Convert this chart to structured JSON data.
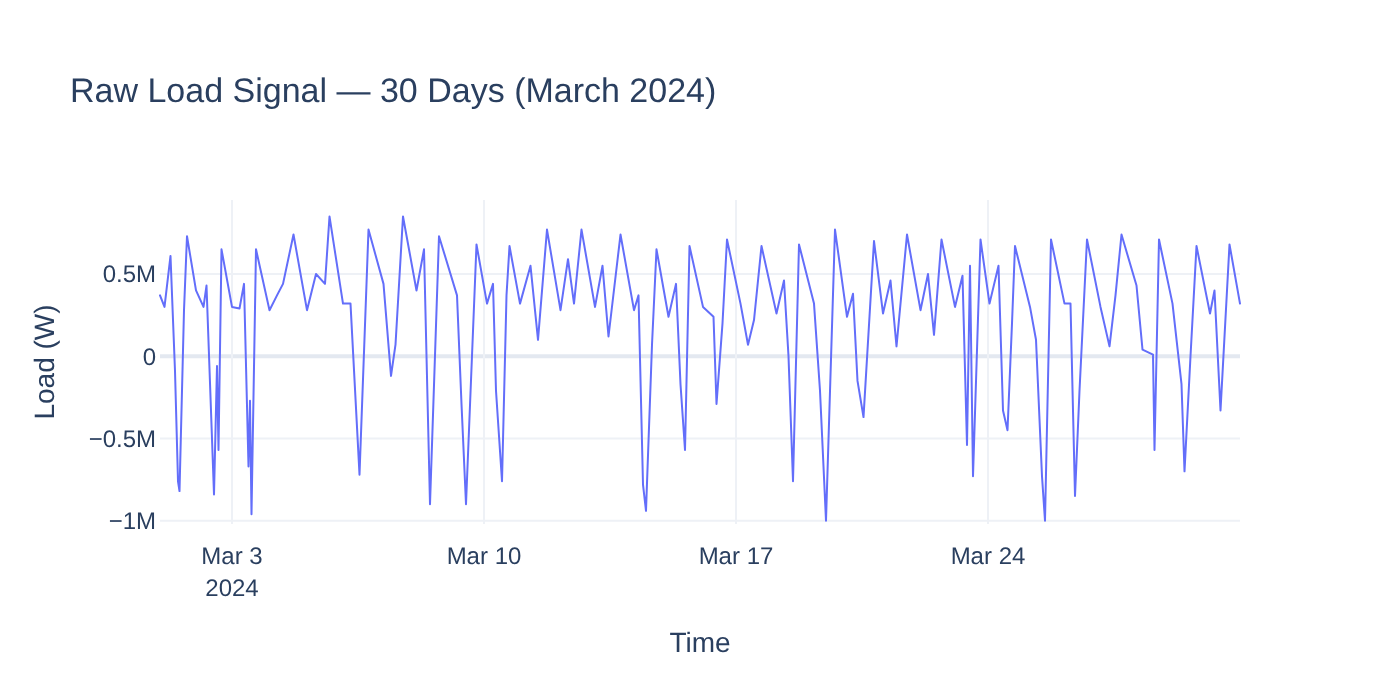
{
  "chart_data": {
    "type": "line",
    "title": "Raw Load Signal — 30 Days (March 2024)",
    "xlabel": "Time",
    "ylabel": "Load (W)",
    "x": [
      "2024-03-01T00:00",
      "2024-03-01T03:00",
      "2024-03-01T07:00",
      "2024-03-01T10:00",
      "2024-03-01T12:00",
      "2024-03-01T13:00",
      "2024-03-01T16:00",
      "2024-03-01T18:00",
      "2024-03-02T00:00",
      "2024-03-02T05:00",
      "2024-03-02T07:00",
      "2024-03-02T12:00",
      "2024-03-02T14:00",
      "2024-03-02T15:00",
      "2024-03-02T17:00",
      "2024-03-03T00:00",
      "2024-03-03T05:00",
      "2024-03-03T08:00",
      "2024-03-03T11:00",
      "2024-03-03T12:00",
      "2024-03-03T13:00",
      "2024-03-03T16:00",
      "2024-03-04T01:00",
      "2024-03-04T06:00",
      "2024-03-04T10:00",
      "2024-03-04T17:00",
      "2024-03-05T02:00",
      "2024-03-05T08:00",
      "2024-03-05T14:00",
      "2024-03-05T17:00",
      "2024-03-06T02:00",
      "2024-03-06T07:00",
      "2024-03-06T13:00",
      "2024-03-06T19:00",
      "2024-03-07T05:00",
      "2024-03-07T10:00",
      "2024-03-07T13:00",
      "2024-03-07T18:00",
      "2024-03-08T03:00",
      "2024-03-08T08:00",
      "2024-03-08T12:00",
      "2024-03-08T18:00",
      "2024-03-09T06:00",
      "2024-03-09T09:00",
      "2024-03-09T12:00",
      "2024-03-09T19:00",
      "2024-03-10T02:00",
      "2024-03-10T06:00",
      "2024-03-10T08:00",
      "2024-03-10T12:00",
      "2024-03-10T15:00",
      "2024-03-10T17:00",
      "2024-03-11T00:00",
      "2024-03-11T07:00",
      "2024-03-11T12:00",
      "2024-03-11T18:00",
      "2024-03-12T03:00",
      "2024-03-12T08:00",
      "2024-03-12T12:00",
      "2024-03-12T17:00",
      "2024-03-13T02:00",
      "2024-03-13T07:00",
      "2024-03-13T11:00",
      "2024-03-13T19:00",
      "2024-03-14T04:00",
      "2024-03-14T07:00",
      "2024-03-14T10:00",
      "2024-03-14T12:00",
      "2024-03-14T16:00",
      "2024-03-14T19:00",
      "2024-03-15T03:00",
      "2024-03-15T08:00",
      "2024-03-15T11:00",
      "2024-03-15T14:00",
      "2024-03-15T17:00",
      "2024-03-16T02:00",
      "2024-03-16T09:00",
      "2024-03-16T11:00",
      "2024-03-16T15:00",
      "2024-03-16T18:00",
      "2024-03-17T03:00",
      "2024-03-17T08:00",
      "2024-03-17T12:00",
      "2024-03-17T17:00",
      "2024-03-18T03:00",
      "2024-03-18T08:00",
      "2024-03-18T11:00",
      "2024-03-18T14:00",
      "2024-03-18T18:00",
      "2024-03-19T04:00",
      "2024-03-19T08:00",
      "2024-03-19T12:00",
      "2024-03-19T18:00",
      "2024-03-20T02:00",
      "2024-03-20T06:00",
      "2024-03-20T09:00",
      "2024-03-20T13:00",
      "2024-03-20T20:00",
      "2024-03-21T02:00",
      "2024-03-21T07:00",
      "2024-03-21T11:00",
      "2024-03-21T18:00",
      "2024-03-22T03:00",
      "2024-03-22T08:00",
      "2024-03-22T12:00",
      "2024-03-22T17:00",
      "2024-03-23T02:00",
      "2024-03-23T07:00",
      "2024-03-23T10:00",
      "2024-03-23T12:00",
      "2024-03-23T14:00",
      "2024-03-23T19:00",
      "2024-03-24T01:00",
      "2024-03-24T07:00",
      "2024-03-24T10:00",
      "2024-03-24T13:00",
      "2024-03-24T16:00",
      "2024-03-24T18:00",
      "2024-03-25T04:00",
      "2024-03-25T08:00",
      "2024-03-25T12:00",
      "2024-03-25T14:00",
      "2024-03-25T18:00",
      "2024-03-26T03:00",
      "2024-03-26T07:00",
      "2024-03-26T10:00",
      "2024-03-26T13:00",
      "2024-03-26T18:00",
      "2024-03-27T03:00",
      "2024-03-27T09:00",
      "2024-03-27T13:00",
      "2024-03-27T17:00",
      "2024-03-28T03:00",
      "2024-03-28T07:00",
      "2024-03-28T14:00",
      "2024-03-28T15:00",
      "2024-03-28T18:00",
      "2024-03-29T03:00",
      "2024-03-29T09:00",
      "2024-03-29T11:00",
      "2024-03-29T15:00",
      "2024-03-29T19:00",
      "2024-03-30T04:00",
      "2024-03-30T07:00",
      "2024-03-30T11:00",
      "2024-03-30T17:00",
      "2024-03-31T00:00"
    ],
    "series": [
      {
        "color": "#636efa",
        "values": [
          370000,
          300000,
          610000,
          -90000,
          -760000,
          -820000,
          280000,
          730000,
          400000,
          300000,
          430000,
          -840000,
          -60000,
          -570000,
          650000,
          300000,
          290000,
          440000,
          -670000,
          -270000,
          -960000,
          650000,
          280000,
          370000,
          440000,
          740000,
          280000,
          500000,
          440000,
          850000,
          320000,
          320000,
          -720000,
          770000,
          440000,
          -120000,
          70000,
          850000,
          400000,
          650000,
          -900000,
          730000,
          370000,
          -290000,
          -900000,
          680000,
          320000,
          440000,
          -210000,
          -760000,
          370000,
          670000,
          320000,
          550000,
          100000,
          770000,
          280000,
          590000,
          320000,
          770000,
          300000,
          550000,
          120000,
          740000,
          280000,
          370000,
          -780000,
          -940000,
          70000,
          650000,
          240000,
          440000,
          -170000,
          -570000,
          670000,
          300000,
          240000,
          -290000,
          200000,
          710000,
          320000,
          70000,
          220000,
          670000,
          260000,
          460000,
          0,
          -760000,
          680000,
          320000,
          -210000,
          -1000000,
          770000,
          240000,
          380000,
          -150000,
          -370000,
          700000,
          260000,
          460000,
          60000,
          740000,
          280000,
          500000,
          130000,
          710000,
          300000,
          490000,
          -540000,
          550000,
          -730000,
          710000,
          320000,
          550000,
          -330000,
          -450000,
          200000,
          670000,
          300000,
          100000,
          -730000,
          -1000000,
          710000,
          320000,
          320000,
          -850000,
          -210000,
          710000,
          300000,
          60000,
          370000,
          740000,
          430000,
          40000,
          10000,
          -570000,
          710000,
          320000,
          -170000,
          -700000,
          0,
          670000,
          260000,
          400000,
          -330000,
          680000,
          320000
        ]
      }
    ],
    "xlim": [
      "2024-03-01T00:00",
      "2024-03-31T00:00"
    ],
    "xticks": [
      {
        "value": "2024-03-03",
        "label": "Mar 3\n2024"
      },
      {
        "value": "2024-03-10",
        "label": "Mar 10"
      },
      {
        "value": "2024-03-17",
        "label": "Mar 17"
      },
      {
        "value": "2024-03-24",
        "label": "Mar 24"
      }
    ],
    "ylim": [
      -1020000,
      950000
    ],
    "yticks": [
      {
        "value": -1000000,
        "label": "−1M"
      },
      {
        "value": -500000,
        "label": "−0.5M"
      },
      0,
      {
        "value": 500000,
        "label": "0.5M"
      }
    ],
    "grid": true,
    "line_style": "solid",
    "marker": "none"
  }
}
